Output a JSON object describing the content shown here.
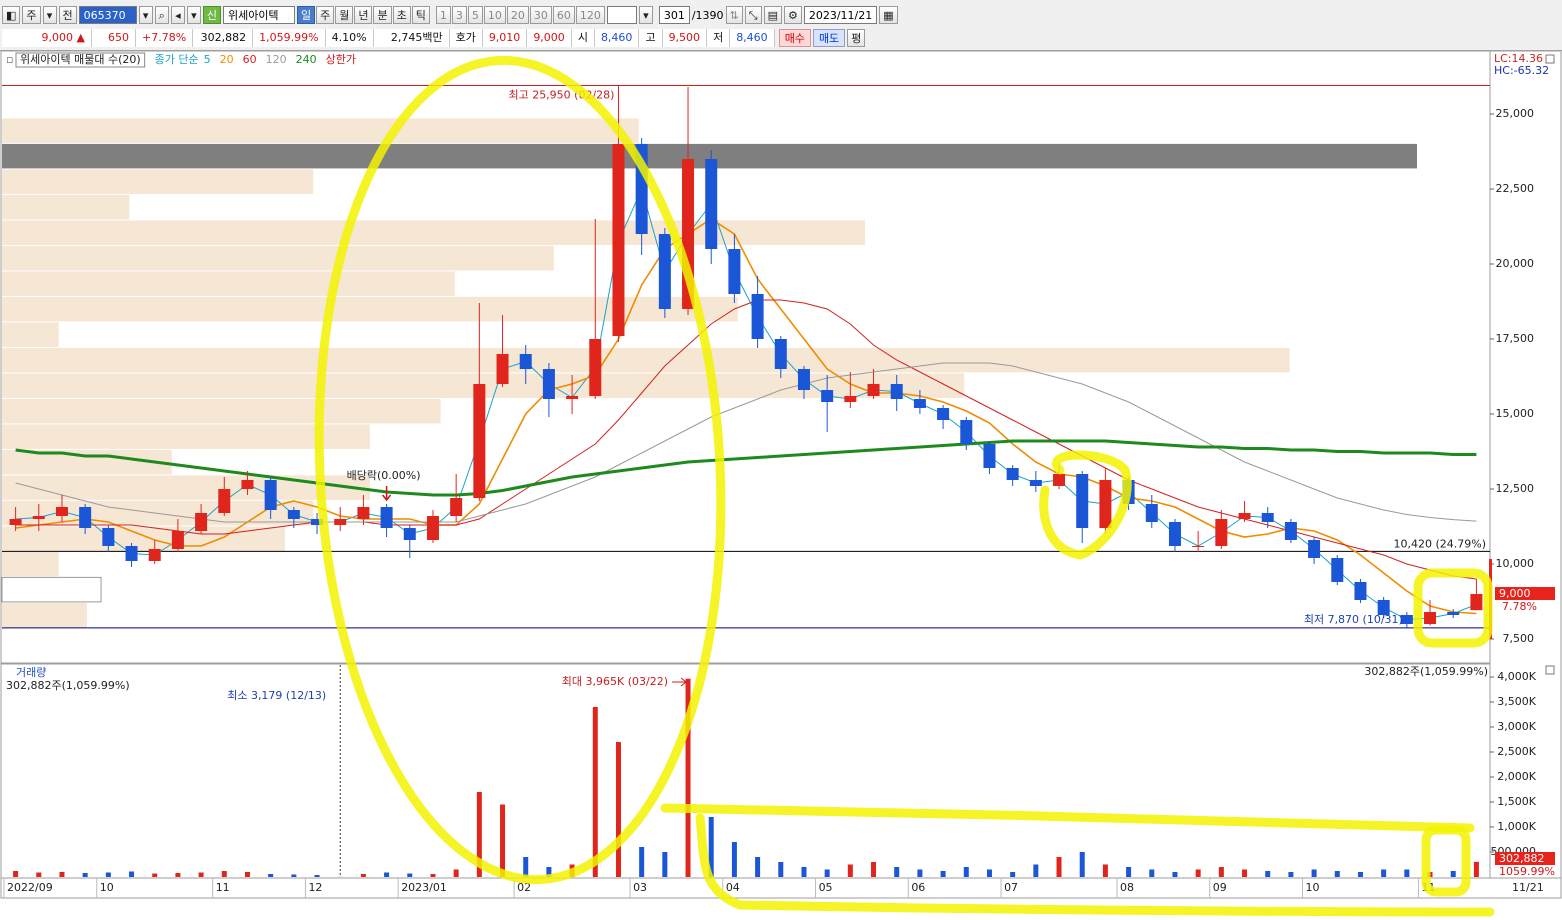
{
  "toolbar": {
    "period_type": "주",
    "prev": "전",
    "code": "065370",
    "new_badge": "신",
    "name": "위세아이텍",
    "periods": [
      "일",
      "주",
      "월",
      "년",
      "분",
      "초",
      "틱"
    ],
    "minutes": [
      "1",
      "3",
      "5",
      "10",
      "20",
      "30",
      "60",
      "120"
    ],
    "count": "301",
    "total": "/1390",
    "date": "2023/11/21"
  },
  "quote": {
    "price": "9,000 ▲",
    "change": "650",
    "rate": "+7.78%",
    "volume": "302,882",
    "volume_rate": "1,059.99%",
    "turnover": "4.10%",
    "amount": "2,745백만",
    "bid_label": "호가",
    "ask": "9,010",
    "bid": "9,000",
    "open_label": "시",
    "open": "8,460",
    "high_label": "고",
    "high": "9,500",
    "low_label": "저",
    "low": "8,460",
    "buy": "매수",
    "sell": "매도",
    "avg": "평"
  },
  "chart_data": {
    "type": "candlestick",
    "legend_title": "위세아이텍 매물대 수(20)",
    "ma_title": "종가 단순",
    "limit_label": "상한가",
    "limit_color": "#d2161a",
    "lc": "LC:14.36",
    "hc": "HC:-65.32",
    "categories": [
      "2022/09",
      null,
      null,
      null,
      "10",
      null,
      null,
      null,
      null,
      "11",
      null,
      null,
      null,
      "12",
      null,
      null,
      null,
      "2023/01",
      null,
      null,
      null,
      null,
      "02",
      null,
      null,
      null,
      null,
      "03",
      null,
      null,
      null,
      "04",
      null,
      null,
      null,
      "05",
      null,
      null,
      null,
      "06",
      null,
      null,
      null,
      "07",
      null,
      null,
      null,
      null,
      "08",
      null,
      null,
      null,
      "09",
      null,
      null,
      null,
      "10",
      null,
      null,
      null,
      null,
      "11",
      null,
      null
    ],
    "x_end_label": "11/21",
    "open": [
      11300,
      11500,
      11600,
      11900,
      11200,
      10600,
      10100,
      10500,
      11100,
      11700,
      12500,
      12800,
      11800,
      11500,
      11300,
      11500,
      11900,
      11200,
      10800,
      11600,
      12200,
      16000,
      17000,
      16500,
      15500,
      15600,
      17600,
      24000,
      21000,
      18500,
      23500,
      20500,
      19000,
      17500,
      16500,
      15800,
      15400,
      15600,
      16000,
      15500,
      15200,
      14800,
      14000,
      13200,
      12800,
      12600,
      13000,
      11200,
      12800,
      12000,
      11400,
      10600,
      10600,
      11500,
      11700,
      11400,
      10800,
      10200,
      9400,
      8800,
      8300,
      8000,
      8400,
      8460
    ],
    "high": [
      11900,
      12000,
      12300,
      12000,
      11300,
      10700,
      10800,
      11500,
      12000,
      12900,
      13100,
      12900,
      11900,
      11700,
      11900,
      12300,
      12000,
      11300,
      11800,
      13000,
      18700,
      18300,
      17300,
      16700,
      16300,
      21500,
      25950,
      24200,
      21200,
      25900,
      23800,
      21000,
      19600,
      17600,
      16600,
      16300,
      16400,
      16500,
      16300,
      15800,
      15300,
      14900,
      14100,
      13300,
      13100,
      13300,
      13100,
      13200,
      12900,
      12300,
      11500,
      11100,
      11800,
      12100,
      11900,
      11500,
      10900,
      10300,
      9500,
      8900,
      8400,
      8800,
      8500,
      9500
    ],
    "low": [
      11100,
      11100,
      11400,
      11000,
      10400,
      9900,
      10000,
      10400,
      11000,
      11600,
      12300,
      11500,
      11200,
      11000,
      11100,
      11300,
      10900,
      10200,
      10700,
      11400,
      12100,
      15900,
      16000,
      14900,
      15000,
      15500,
      17400,
      20300,
      18200,
      18300,
      20000,
      18700,
      17200,
      16200,
      15500,
      14400,
      15200,
      15500,
      15100,
      15000,
      14500,
      13800,
      13000,
      12600,
      12400,
      12500,
      10700,
      11000,
      11800,
      11200,
      10400,
      10400,
      10500,
      11400,
      11200,
      10700,
      10000,
      9300,
      8700,
      8200,
      7870,
      7950,
      8200,
      8460
    ],
    "close": [
      11500,
      11600,
      11900,
      11200,
      10600,
      10100,
      10500,
      11100,
      11700,
      12500,
      12800,
      11800,
      11500,
      11300,
      11500,
      11900,
      11200,
      10800,
      11600,
      12200,
      16000,
      17000,
      16500,
      15500,
      15600,
      17500,
      24000,
      21000,
      18500,
      23500,
      20500,
      19000,
      17500,
      16500,
      15800,
      15400,
      15600,
      16000,
      15500,
      15200,
      14800,
      14000,
      13200,
      12800,
      12600,
      13000,
      11200,
      12800,
      12000,
      11400,
      10600,
      10600,
      11500,
      11700,
      11400,
      10800,
      10200,
      9400,
      8800,
      8300,
      8000,
      8400,
      8300,
      9000
    ],
    "up_color": "#e0261c",
    "down_color": "#1a56d6",
    "ylim": [
      6733,
      27067
    ],
    "yticks": [
      {
        "value": 7500,
        "label": "7,500"
      },
      {
        "value": 10000,
        "label": "10,000"
      },
      {
        "value": 12500,
        "label": "12,500"
      },
      {
        "value": 15000,
        "label": "15,000"
      },
      {
        "value": 17500,
        "label": "17,500"
      },
      {
        "value": 20000,
        "label": "20,000"
      },
      {
        "value": 22500,
        "label": "22,500"
      },
      {
        "value": 25000,
        "label": "25,000"
      }
    ],
    "ma_series": [
      {
        "name": "5",
        "color": "#1aa3c8",
        "width": 1,
        "values": [
          11500,
          11550,
          11750,
          11550,
          10900,
          10350,
          10300,
          10800,
          11400,
          12100,
          12650,
          12300,
          11650,
          11400,
          11400,
          11700,
          11550,
          11000,
          11200,
          11900,
          14100,
          16500,
          16750,
          16000,
          15550,
          16550,
          20750,
          22500,
          19750,
          21000,
          22000,
          19750,
          18250,
          17000,
          16150,
          15600,
          15500,
          15800,
          15750,
          15350,
          15000,
          14400,
          13600,
          13000,
          12700,
          12800,
          12100,
          12000,
          12400,
          11700,
          11000,
          10600,
          11050,
          11600,
          11550,
          11100,
          10500,
          9800,
          9100,
          8550,
          8150,
          8200,
          8350,
          8650
        ]
      },
      {
        "name": "20",
        "color": "#f08c00",
        "width": 1.6,
        "values": [
          11200,
          11300,
          11400,
          11500,
          11400,
          11100,
          10800,
          10600,
          10600,
          10900,
          11400,
          11900,
          12100,
          11900,
          11600,
          11500,
          11500,
          11500,
          11300,
          11300,
          12000,
          13500,
          15000,
          15800,
          16000,
          16300,
          17500,
          19300,
          20500,
          21000,
          21500,
          21000,
          19500,
          18500,
          17500,
          16500,
          16000,
          15700,
          15700,
          15600,
          15400,
          15100,
          14700,
          14000,
          13400,
          13000,
          12900,
          12600,
          12200,
          12100,
          11900,
          11500,
          11100,
          10900,
          11000,
          11200,
          11100,
          10800,
          10300,
          9700,
          9100,
          8600,
          8400,
          8350
        ]
      },
      {
        "name": "60",
        "color": "#d42020",
        "width": 1,
        "values": [
          11300,
          11300,
          11300,
          11300,
          11300,
          11300,
          11200,
          11100,
          11000,
          11000,
          11100,
          11200,
          11300,
          11400,
          11400,
          11400,
          11300,
          11300,
          11300,
          11300,
          11500,
          12000,
          12500,
          13000,
          13500,
          14000,
          14800,
          15700,
          16600,
          17300,
          18000,
          18500,
          18800,
          18800,
          18700,
          18500,
          18000,
          17300,
          16800,
          16400,
          16000,
          15600,
          15200,
          14800,
          14400,
          14000,
          13600,
          13200,
          12800,
          12500,
          12200,
          11900,
          11700,
          11500,
          11300,
          11100,
          10900,
          10700,
          10500,
          10300,
          10000,
          9800,
          9600,
          9500
        ]
      },
      {
        "name": "120",
        "color": "#9a9a9a",
        "width": 1,
        "values": [
          12700,
          12500,
          12300,
          12100,
          11900,
          11800,
          11700,
          11600,
          11500,
          11400,
          11400,
          11400,
          11400,
          11400,
          11400,
          11400,
          11400,
          11400,
          11400,
          11400,
          11600,
          11800,
          12000,
          12300,
          12600,
          12900,
          13300,
          13700,
          14100,
          14500,
          14900,
          15200,
          15500,
          15800,
          16000,
          16200,
          16300,
          16400,
          16500,
          16600,
          16700,
          16700,
          16700,
          16600,
          16400,
          16200,
          16000,
          15700,
          15400,
          15000,
          14600,
          14200,
          13800,
          13400,
          13100,
          12800,
          12500,
          12200,
          12000,
          11800,
          11650,
          11550,
          11480,
          11430
        ]
      },
      {
        "name": "240",
        "color": "#1d8a1d",
        "width": 3,
        "values": [
          13800,
          13700,
          13700,
          13600,
          13600,
          13500,
          13400,
          13300,
          13200,
          13100,
          13000,
          12900,
          12800,
          12700,
          12600,
          12500,
          12400,
          12350,
          12300,
          12300,
          12350,
          12450,
          12600,
          12750,
          12900,
          13000,
          13100,
          13200,
          13300,
          13400,
          13450,
          13500,
          13550,
          13600,
          13650,
          13700,
          13750,
          13800,
          13850,
          13900,
          13950,
          14000,
          14050,
          14100,
          14100,
          14100,
          14100,
          14100,
          14050,
          14000,
          13950,
          13900,
          13900,
          13850,
          13850,
          13800,
          13800,
          13750,
          13750,
          13700,
          13700,
          13700,
          13650,
          13650
        ]
      }
    ],
    "volume_profile": {
      "bins": [
        24870,
        24020,
        23170,
        22320,
        21470,
        20620,
        19770,
        18920,
        18070,
        17220,
        16370,
        15520,
        14670,
        13820,
        12970,
        12120,
        11270,
        10420,
        9570,
        8720,
        7870
      ],
      "values": [
        45,
        100,
        22,
        9,
        61,
        39,
        32,
        52,
        4,
        91,
        68,
        31,
        26,
        12,
        26,
        22,
        20,
        4,
        7,
        6
      ],
      "color": "#f6e6d4",
      "max_color": "#7f7f7f"
    },
    "hlines": [
      {
        "value": 25950,
        "color": "#c81e1e",
        "label": "최고 25,950 (02/28)"
      },
      {
        "value": 10420,
        "color": "#000000",
        "label": "10,420 (24.79%)"
      },
      {
        "value": 7870,
        "color": "#00007a",
        "label": "최저 7,870 (10/31)"
      }
    ],
    "event_label": "배당락(0.00%)",
    "last_label": "9,000",
    "last_rate": "7.78%",
    "volume": {
      "title": "거래량",
      "info": "302,882주(1,059.99%)",
      "values": [
        120000,
        90000,
        100000,
        80000,
        90000,
        110000,
        70000,
        80000,
        90000,
        120000,
        100000,
        60000,
        50000,
        40000,
        3179,
        60000,
        90000,
        70000,
        60000,
        150000,
        1700000,
        1450000,
        400000,
        200000,
        250000,
        3400000,
        2700000,
        600000,
        500000,
        3965000,
        1200000,
        700000,
        400000,
        300000,
        200000,
        150000,
        250000,
        300000,
        200000,
        150000,
        120000,
        200000,
        150000,
        100000,
        250000,
        400000,
        500000,
        250000,
        200000,
        150000,
        100000,
        150000,
        200000,
        150000,
        120000,
        100000,
        150000,
        120000,
        100000,
        150000,
        150000,
        100000,
        120000,
        302882
      ],
      "ylim": [
        0,
        4240000
      ],
      "yticks": [
        {
          "value": 500000,
          "label": "500,000"
        },
        {
          "value": 1000000,
          "label": "1,000K"
        },
        {
          "value": 1500000,
          "label": "1,500K"
        },
        {
          "value": 2000000,
          "label": "2,000K"
        },
        {
          "value": 2500000,
          "label": "2,500K"
        },
        {
          "value": 3000000,
          "label": "3,000K"
        },
        {
          "value": 3500000,
          "label": "3,500K"
        },
        {
          "value": 4000000,
          "label": "4,000K"
        }
      ],
      "max_label": "최대 3,965K (03/22)",
      "min_label": "최소 3,179 (12/13)",
      "last_label": "302,882",
      "last_rate": "1059.99%"
    }
  }
}
